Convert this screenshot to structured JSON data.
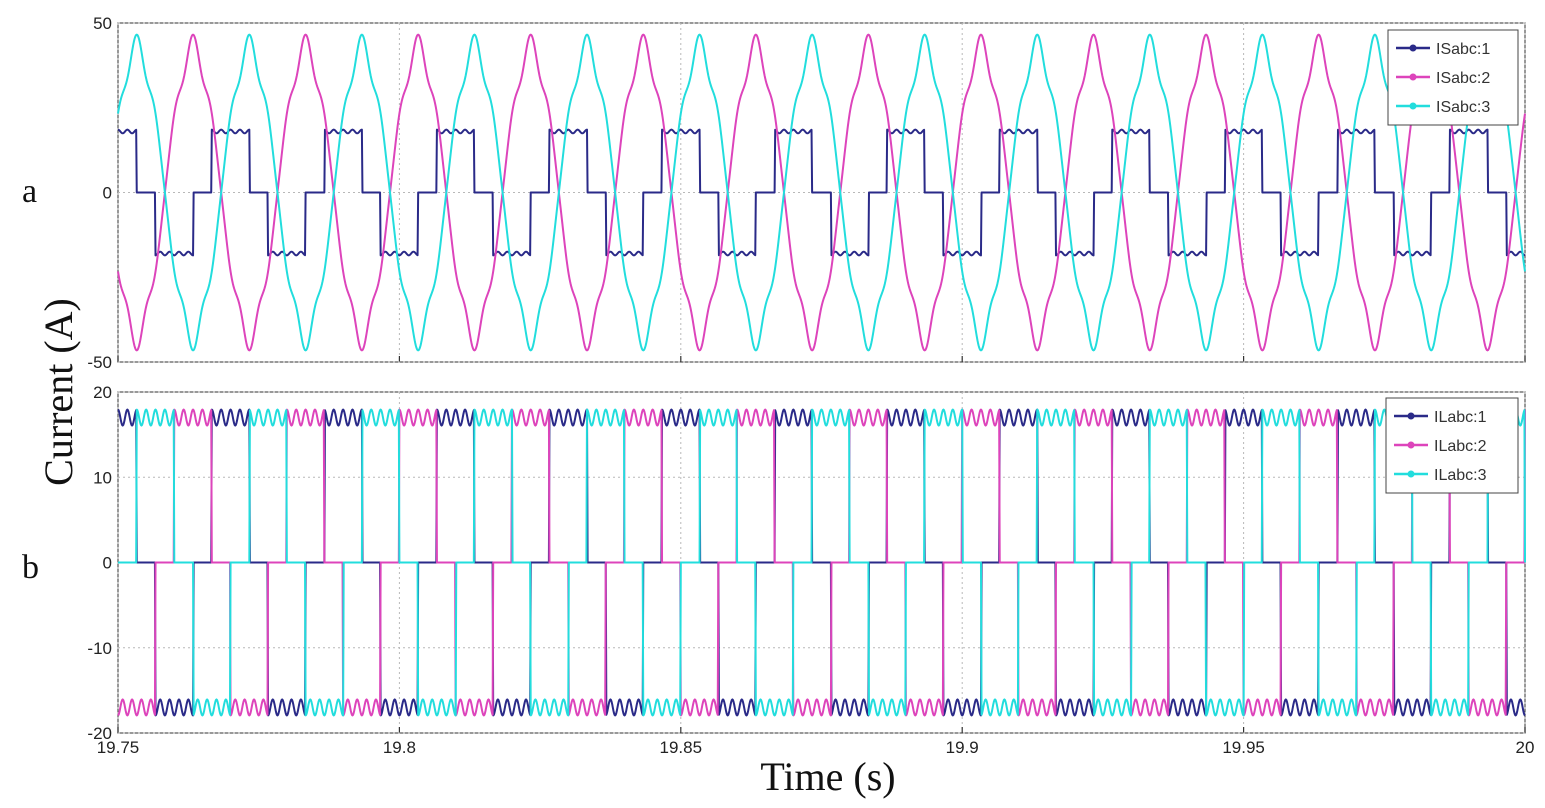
{
  "chart_data": {
    "type": "line",
    "ylabel": "Current (A)",
    "xlabel": "Time (s)",
    "xlim": [
      19.75,
      20
    ],
    "x_ticks": [
      "19.75",
      "19.8",
      "19.85",
      "19.9",
      "19.95",
      "20"
    ],
    "frequency_hz": 50,
    "grid": true,
    "legend_position": "top-right",
    "colors": {
      "phase1": "#2a2a88",
      "phase2": "#dd44bb",
      "phase3": "#22dddd"
    },
    "panels": [
      {
        "label": "a",
        "ylim": [
          -50,
          50
        ],
        "y_ticks": [
          "50",
          "0",
          "-50"
        ],
        "series": [
          {
            "name": "ISabc:1",
            "amplitude": 18,
            "phase_deg": -90,
            "shape": "stepped"
          },
          {
            "name": "ISabc:2",
            "amplitude": 44,
            "phase_deg": 30,
            "shape": "distorted-sine"
          },
          {
            "name": "ISabc:3",
            "amplitude": 44,
            "phase_deg": 210,
            "shape": "distorted-sine"
          }
        ]
      },
      {
        "label": "b",
        "ylim": [
          -20,
          20
        ],
        "y_ticks": [
          "20",
          "10",
          "0",
          "-10",
          "-20"
        ],
        "series": [
          {
            "name": "ILabc:1",
            "amplitude": 17,
            "phase_deg": -90,
            "shape": "quasi-square"
          },
          {
            "name": "ILabc:2",
            "amplitude": 17,
            "phase_deg": 30,
            "shape": "quasi-square"
          },
          {
            "name": "ILabc:3",
            "amplitude": 17,
            "phase_deg": 150,
            "shape": "quasi-square"
          }
        ]
      }
    ]
  }
}
